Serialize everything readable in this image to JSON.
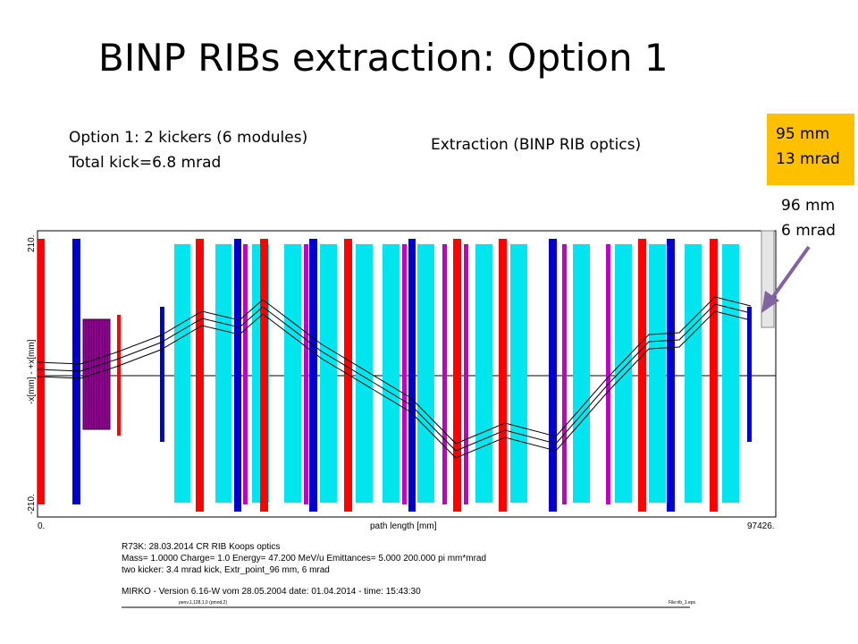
{
  "slide": {
    "title": "BINP RIBs extraction: Option 1",
    "option_line1": "Option 1:  2 kickers (6 modules)",
    "option_line2": "Total kick=6.8 mrad",
    "extraction_label": "Extraction (BINP RIB optics)",
    "box_95": {
      "line1": "95 mm",
      "line2": "13 mrad",
      "bg": "#ffc000"
    },
    "label_96": {
      "line1": "96 mm",
      "line2": "6 mrad"
    }
  },
  "plot": {
    "y_top": "210.",
    "y_bottom": "-210.",
    "y_axis_label": "-x[mm] - +x[mm]",
    "x_start": "0.",
    "x_end": "97426.",
    "x_axis_label": "path length [mm]",
    "info_lines": [
      "R73K: 28.03.2014 CR RIB Koops optics",
      "Mass= 1.0000 Charge= 1.0 Energy= 47.200 MeV/u Emittances= 5.000 200.000 pi mm*mrad",
      "two kicker: 3.4 mrad kick, Extr_point_96 mm, 6 mrad"
    ],
    "version_line": "MIRKO  -  Version 6.16-W vom 28.05.2004   date: 01.04.2014 - time: 15:43:30",
    "small_left": "penv,1,128,1,0 (pmod,2)",
    "small_right": "File:rib_1.eps",
    "colors": {
      "dipole": "#00e5ee",
      "quad": "#ff0000",
      "sext": "#c000c0",
      "steer": "#0000cc",
      "kicker": "#990099"
    }
  }
}
